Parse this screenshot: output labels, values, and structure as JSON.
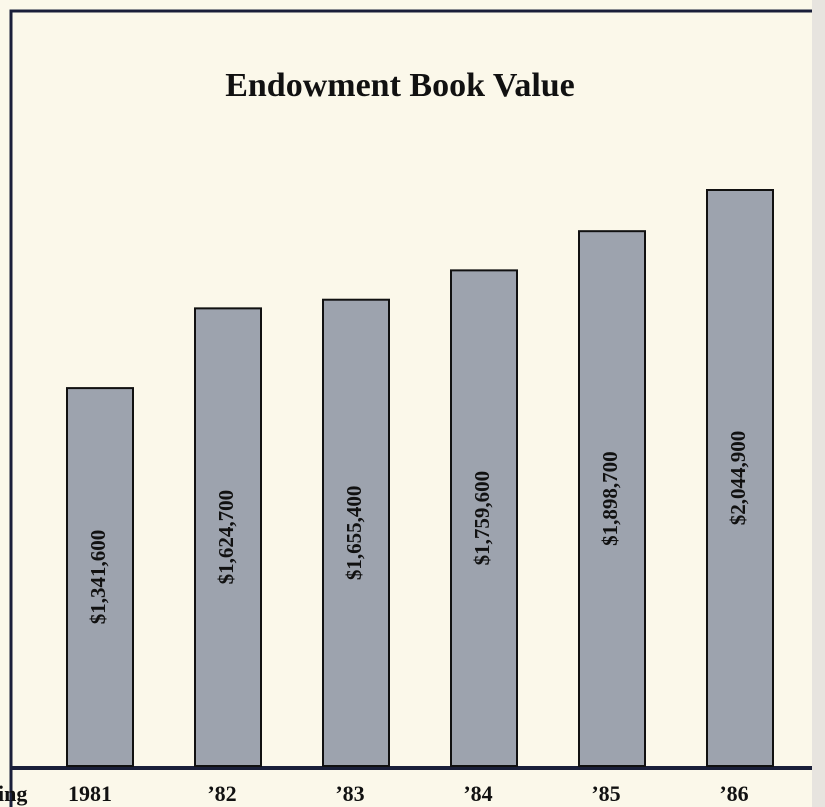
{
  "chart_data": {
    "type": "bar",
    "title": "Endowment Book Value",
    "xlabel": "ing",
    "categories": [
      "1981",
      "’82",
      "’83",
      "’84",
      "’85",
      "’86"
    ],
    "values": [
      1341600,
      1624700,
      1655400,
      1759600,
      1898700,
      2044900
    ],
    "value_labels": [
      "$1,341,600",
      "$1,624,700",
      "$1,655,400",
      "$1,759,600",
      "$1,898,700",
      "$2,044,900"
    ],
    "color": "#9da3ae"
  }
}
